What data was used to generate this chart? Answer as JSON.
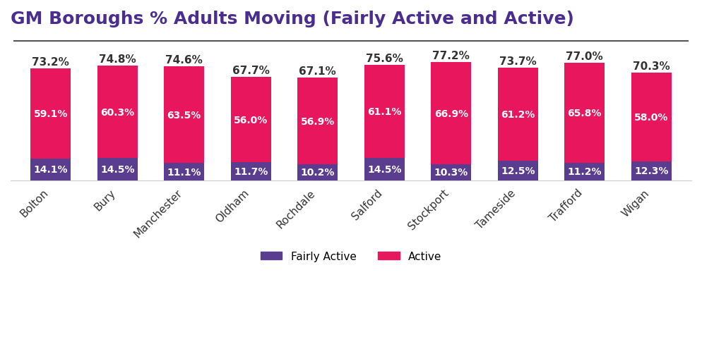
{
  "title": "GM Boroughs % Adults Moving (Fairly Active and Active)",
  "categories": [
    "Bolton",
    "Bury",
    "Manchester",
    "Oldham",
    "Rochdale",
    "Salford",
    "Stockport",
    "Tameside",
    "Trafford",
    "Wigan"
  ],
  "fairly_active": [
    14.1,
    14.5,
    11.1,
    11.7,
    10.2,
    14.5,
    10.3,
    12.5,
    11.2,
    12.3
  ],
  "active": [
    59.1,
    60.3,
    63.5,
    56.0,
    56.9,
    61.1,
    66.9,
    61.2,
    65.8,
    58.0
  ],
  "totals": [
    73.2,
    74.8,
    74.6,
    67.7,
    67.1,
    75.6,
    77.2,
    73.7,
    77.0,
    70.3
  ],
  "fairly_active_color": "#5b3d8f",
  "active_color": "#e8175d",
  "title_color": "#4b2d8f",
  "label_color_white": "#ffffff",
  "total_label_color": "#333333",
  "background_color": "#ffffff",
  "title_fontsize": 18,
  "bar_label_fontsize": 10,
  "total_label_fontsize": 11,
  "tick_label_fontsize": 11,
  "legend_fontsize": 11,
  "bar_width": 0.6,
  "separator_line_color": "#555555"
}
